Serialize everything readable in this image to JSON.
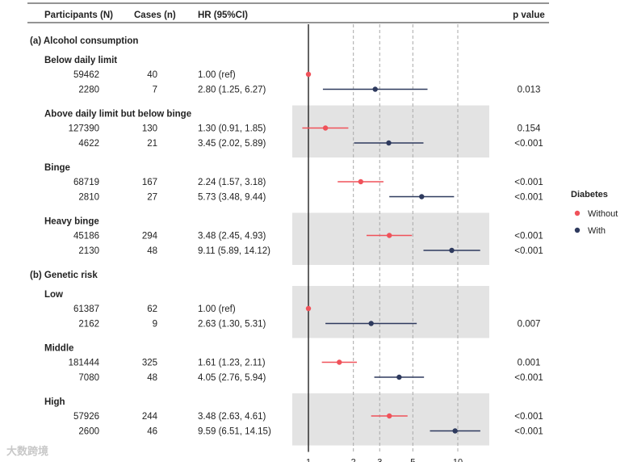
{
  "chart_data": {
    "type": "forest",
    "columns": {
      "participants": "Participants (N)",
      "cases": "Cases (n)",
      "hr": "HR (95%CI)",
      "p": "p value"
    },
    "x_scale": "log",
    "xlim": [
      0.75,
      17
    ],
    "x_ticks": [
      1,
      2,
      3,
      5,
      10
    ],
    "reference_line": 1,
    "legend": {
      "title": "Diabetes",
      "entries": [
        {
          "key": "without",
          "label": "Without",
          "color": "#f0525a"
        },
        {
          "key": "with",
          "label": "With",
          "color": "#2e3a5e"
        }
      ]
    },
    "sections": [
      {
        "title": "(a) Alcohol consumption",
        "groups": [
          {
            "label": "Below daily limit",
            "shaded": false,
            "rows": [
              {
                "series": "without",
                "participants": "59462",
                "cases": "40",
                "hr_text": "1.00 (ref)",
                "hr": 1.0,
                "lo": 1.0,
                "hi": 1.0,
                "p": ""
              },
              {
                "series": "with",
                "participants": "2280",
                "cases": "7",
                "hr_text": "2.80 (1.25, 6.27)",
                "hr": 2.8,
                "lo": 1.25,
                "hi": 6.27,
                "p": "0.013"
              }
            ]
          },
          {
            "label": "Above daily limit but below binge",
            "shaded": true,
            "rows": [
              {
                "series": "without",
                "participants": "127390",
                "cases": "130",
                "hr_text": "1.30 (0.91, 1.85)",
                "hr": 1.3,
                "lo": 0.91,
                "hi": 1.85,
                "p": "0.154"
              },
              {
                "series": "with",
                "participants": "4622",
                "cases": "21",
                "hr_text": "3.45 (2.02, 5.89)",
                "hr": 3.45,
                "lo": 2.02,
                "hi": 5.89,
                "p": "<0.001"
              }
            ]
          },
          {
            "label": "Binge",
            "shaded": false,
            "rows": [
              {
                "series": "without",
                "participants": "68719",
                "cases": "167",
                "hr_text": "2.24 (1.57, 3.18)",
                "hr": 2.24,
                "lo": 1.57,
                "hi": 3.18,
                "p": "<0.001"
              },
              {
                "series": "with",
                "participants": "2810",
                "cases": "27",
                "hr_text": "5.73 (3.48, 9.44)",
                "hr": 5.73,
                "lo": 3.48,
                "hi": 9.44,
                "p": "<0.001"
              }
            ]
          },
          {
            "label": "Heavy binge",
            "shaded": true,
            "rows": [
              {
                "series": "without",
                "participants": "45186",
                "cases": "294",
                "hr_text": "3.48 (2.45, 4.93)",
                "hr": 3.48,
                "lo": 2.45,
                "hi": 4.93,
                "p": "<0.001"
              },
              {
                "series": "with",
                "participants": "2130",
                "cases": "48",
                "hr_text": "9.11 (5.89, 14.12)",
                "hr": 9.11,
                "lo": 5.89,
                "hi": 14.12,
                "p": "<0.001"
              }
            ]
          }
        ]
      },
      {
        "title": "(b) Genetic risk",
        "groups": [
          {
            "label": "Low",
            "shaded": true,
            "rows": [
              {
                "series": "without",
                "participants": "61387",
                "cases": "62",
                "hr_text": "1.00 (ref)",
                "hr": 1.0,
                "lo": 1.0,
                "hi": 1.0,
                "p": ""
              },
              {
                "series": "with",
                "participants": "2162",
                "cases": "9",
                "hr_text": "2.63 (1.30, 5.31)",
                "hr": 2.63,
                "lo": 1.3,
                "hi": 5.31,
                "p": "0.007"
              }
            ]
          },
          {
            "label": "Middle",
            "shaded": false,
            "rows": [
              {
                "series": "without",
                "participants": "181444",
                "cases": "325",
                "hr_text": "1.61 (1.23, 2.11)",
                "hr": 1.61,
                "lo": 1.23,
                "hi": 2.11,
                "p": "0.001"
              },
              {
                "series": "with",
                "participants": "7080",
                "cases": "48",
                "hr_text": "4.05 (2.76, 5.94)",
                "hr": 4.05,
                "lo": 2.76,
                "hi": 5.94,
                "p": "<0.001"
              }
            ]
          },
          {
            "label": "High",
            "shaded": true,
            "rows": [
              {
                "series": "without",
                "participants": "57926",
                "cases": "244",
                "hr_text": "3.48 (2.63, 4.61)",
                "hr": 3.48,
                "lo": 2.63,
                "hi": 4.61,
                "p": "<0.001"
              },
              {
                "series": "with",
                "participants": "2600",
                "cases": "46",
                "hr_text": "9.59 (6.51, 14.15)",
                "hr": 9.59,
                "lo": 6.51,
                "hi": 14.15,
                "p": "<0.001"
              }
            ]
          }
        ]
      }
    ]
  },
  "watermark": "大数跨境"
}
